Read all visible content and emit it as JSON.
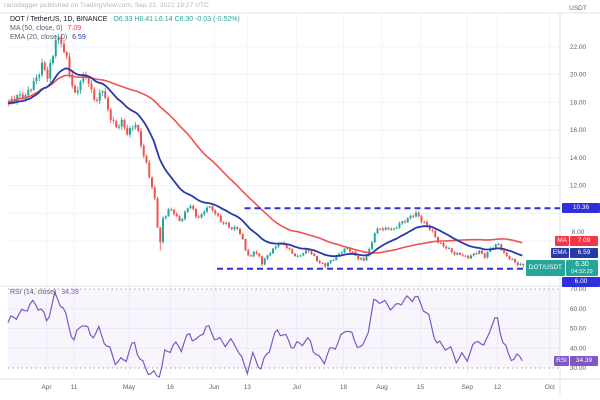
{
  "watermark": "ranodagger published on TradingView.com, Sep 21, 2022 19:27 UTC",
  "header": {
    "symbol_text": "DOT / TetherUS, 1D, BINANCE",
    "ohlc_text": "O6.33  H6.41  L6.14  C6.30  -0.03 (-0.52%)",
    "ma_label": "MA (50, close, 0)",
    "ma_value": "7.09",
    "ema_label": "EMA (20, close, 0)",
    "ema_value": "6.59"
  },
  "rsi_panel": {
    "legend_label": "RSI (14, close)",
    "legend_value": "34.39"
  },
  "badges": {
    "resistance": "10.36",
    "support": "6.00",
    "ma_label": "MA",
    "ma_value": "7.09",
    "ema_label": "EMA",
    "ema_value": "6.59",
    "symbol_label": "DOT/USDT",
    "symbol_value": "6.30",
    "symbol_countdown": "04:32:29",
    "rsi_label": "RSI",
    "rsi_value": "34.39"
  },
  "axes": {
    "unit": "USDT",
    "price_tick_labels": [
      "22.00",
      "20.00",
      "18.00",
      "16.00",
      "14.00",
      "12.00",
      "8.00"
    ],
    "rsi_tick_labels": [
      "70.00",
      "60.00",
      "50.00",
      "40.00",
      "30.00"
    ]
  },
  "colors": {
    "up": "#26a69a",
    "down": "#ef5350",
    "ema": "#2939a8",
    "sma": "#ef5350",
    "rsi": "#7e57c2",
    "level": "#2f2fe0",
    "grid": "#f0f3fa",
    "border": "#e0e3eb",
    "axis_text": "#5d606b",
    "band_fill": "rgba(126,87,194,0.05)",
    "band_line": "#a59fc4"
  },
  "chart_data": [
    {
      "type": "candlestick",
      "name": "DOT/USDT, 1D, BINANCE",
      "x_unit": "day index, day 0 = 2022-03-18, last day 187 = 2022-09-21",
      "ylim": [
        5.5,
        23.5
      ],
      "grid_prices": [
        22,
        20,
        18,
        16,
        14,
        12,
        10,
        8
      ],
      "price_ticks": [
        {
          "label": "22.00",
          "price": 22
        },
        {
          "label": "20.00",
          "price": 20
        },
        {
          "label": "18.00",
          "price": 18
        },
        {
          "label": "16.00",
          "price": 16
        },
        {
          "label": "14.00",
          "price": 14
        },
        {
          "label": "12.00",
          "price": 12
        },
        {
          "label": "8.00",
          "price": 8
        }
      ],
      "x_ticks": [
        {
          "label": "Apr",
          "day": 14
        },
        {
          "label": "11",
          "day": 24
        },
        {
          "label": "May",
          "day": 44
        },
        {
          "label": "16",
          "day": 59
        },
        {
          "label": "Jun",
          "day": 75
        },
        {
          "label": "13",
          "day": 87
        },
        {
          "label": "Jul",
          "day": 105
        },
        {
          "label": "18",
          "day": 122
        },
        {
          "label": "Aug",
          "day": 136
        },
        {
          "label": "15",
          "day": 150
        },
        {
          "label": "Sep",
          "day": 167
        },
        {
          "label": "12",
          "day": 178
        },
        {
          "label": "Oct",
          "day": 197
        }
      ],
      "levels": [
        {
          "name": "resistance",
          "price": 10.36,
          "label": "10.36",
          "day_start": 86,
          "day_end": 200.7
        },
        {
          "name": "support",
          "price": 6.0,
          "label": "6.00",
          "day_start": 76,
          "day_end": 195.6
        }
      ],
      "close_anchors": [
        [
          0,
          17.8
        ],
        [
          3,
          18.6
        ],
        [
          6,
          18.3
        ],
        [
          9,
          19.5
        ],
        [
          12,
          20.6
        ],
        [
          14,
          19.8
        ],
        [
          16,
          21.5
        ],
        [
          17,
          22.8
        ],
        [
          19,
          22.2
        ],
        [
          21,
          21.0
        ],
        [
          24,
          18.6
        ],
        [
          26,
          19.4
        ],
        [
          28,
          19.9
        ],
        [
          30,
          18.9
        ],
        [
          32,
          18.0
        ],
        [
          34,
          18.9
        ],
        [
          36,
          17.5
        ],
        [
          39,
          16.1
        ],
        [
          41,
          16.5
        ],
        [
          43,
          15.9
        ],
        [
          46,
          16.4
        ],
        [
          48,
          14.9
        ],
        [
          50,
          13.6
        ],
        [
          52,
          11.9
        ],
        [
          53,
          10.9
        ],
        [
          54,
          9.0
        ],
        [
          55,
          7.9
        ],
        [
          56,
          9.6
        ],
        [
          58,
          10.3
        ],
        [
          60,
          10.0
        ],
        [
          62,
          9.4
        ],
        [
          64,
          10.1
        ],
        [
          66,
          10.6
        ],
        [
          68,
          9.7
        ],
        [
          70,
          9.9
        ],
        [
          72,
          10.5
        ],
        [
          75,
          10.0
        ],
        [
          77,
          9.5
        ],
        [
          79,
          9.2
        ],
        [
          81,
          8.8
        ],
        [
          83,
          9.0
        ],
        [
          85,
          8.1
        ],
        [
          86,
          7.4
        ],
        [
          87,
          6.9
        ],
        [
          88,
          6.8
        ],
        [
          89,
          7.3
        ],
        [
          91,
          6.9
        ],
        [
          92,
          6.4
        ],
        [
          94,
          6.9
        ],
        [
          96,
          7.4
        ],
        [
          98,
          7.9
        ],
        [
          100,
          7.7
        ],
        [
          102,
          7.3
        ],
        [
          104,
          7.0
        ],
        [
          105,
          6.9
        ],
        [
          107,
          7.1
        ],
        [
          109,
          7.3
        ],
        [
          111,
          6.9
        ],
        [
          113,
          6.4
        ],
        [
          115,
          6.2
        ],
        [
          117,
          6.6
        ],
        [
          119,
          6.9
        ],
        [
          121,
          7.2
        ],
        [
          123,
          7.5
        ],
        [
          125,
          7.2
        ],
        [
          127,
          6.7
        ],
        [
          129,
          6.6
        ],
        [
          131,
          7.4
        ],
        [
          133,
          8.6
        ],
        [
          135,
          8.9
        ],
        [
          136,
          8.8
        ],
        [
          138,
          9.0
        ],
        [
          140,
          8.8
        ],
        [
          142,
          9.2
        ],
        [
          144,
          9.5
        ],
        [
          146,
          9.8
        ],
        [
          148,
          9.9
        ],
        [
          150,
          9.5
        ],
        [
          152,
          9.2
        ],
        [
          154,
          8.6
        ],
        [
          156,
          7.9
        ],
        [
          158,
          7.7
        ],
        [
          160,
          7.4
        ],
        [
          162,
          7.0
        ],
        [
          164,
          7.1
        ],
        [
          166,
          6.9
        ],
        [
          167,
          6.8
        ],
        [
          169,
          7.0
        ],
        [
          171,
          7.3
        ],
        [
          173,
          6.9
        ],
        [
          175,
          7.4
        ],
        [
          177,
          7.7
        ],
        [
          178,
          7.8
        ],
        [
          180,
          7.1
        ],
        [
          182,
          6.7
        ],
        [
          184,
          6.5
        ],
        [
          185,
          6.35
        ],
        [
          186,
          6.32
        ],
        [
          187,
          6.3
        ]
      ],
      "wick_low_overrides": {
        "55": 7.3,
        "92": 6.16,
        "115": 6.02,
        "187": 6.08
      },
      "wick_high_overrides": {
        "148": 10.2
      },
      "overlays": [
        {
          "name": "EMA (20, close)",
          "last_value": 6.59,
          "derive": "ema20"
        },
        {
          "name": "MA (50, close)",
          "last_value": 7.09,
          "derive": "sma50"
        }
      ]
    },
    {
      "type": "line",
      "name": "RSI (14, close)",
      "last_value": 34.39,
      "ylim": [
        24,
        72
      ],
      "band": [
        30,
        70
      ],
      "rsi_ticks": [
        {
          "label": "70.00",
          "value": 70
        },
        {
          "label": "60.00",
          "value": 60
        },
        {
          "label": "50.00",
          "value": 50
        },
        {
          "label": "40.00",
          "value": 40
        },
        {
          "label": "30.00",
          "value": 30
        }
      ],
      "anchors": [
        [
          0,
          52
        ],
        [
          4,
          58
        ],
        [
          8,
          62
        ],
        [
          12,
          60
        ],
        [
          14,
          55
        ],
        [
          17,
          66
        ],
        [
          20,
          60
        ],
        [
          24,
          45
        ],
        [
          27,
          52
        ],
        [
          30,
          47
        ],
        [
          33,
          50
        ],
        [
          36,
          40
        ],
        [
          39,
          34
        ],
        [
          43,
          35
        ],
        [
          46,
          42
        ],
        [
          48,
          35
        ],
        [
          52,
          27
        ],
        [
          55,
          24
        ],
        [
          57,
          38
        ],
        [
          60,
          42
        ],
        [
          63,
          39
        ],
        [
          66,
          48
        ],
        [
          69,
          44
        ],
        [
          72,
          50
        ],
        [
          75,
          47
        ],
        [
          79,
          42
        ],
        [
          83,
          42
        ],
        [
          85,
          35
        ],
        [
          87,
          29
        ],
        [
          89,
          35
        ],
        [
          92,
          30
        ],
        [
          94,
          38
        ],
        [
          98,
          48
        ],
        [
          102,
          45
        ],
        [
          104,
          41
        ],
        [
          107,
          42
        ],
        [
          110,
          44
        ],
        [
          113,
          35
        ],
        [
          115,
          33
        ],
        [
          118,
          40
        ],
        [
          121,
          46
        ],
        [
          123,
          50
        ],
        [
          126,
          43
        ],
        [
          129,
          41
        ],
        [
          131,
          50
        ],
        [
          133,
          62
        ],
        [
          135,
          64
        ],
        [
          138,
          63
        ],
        [
          141,
          60
        ],
        [
          144,
          64
        ],
        [
          146,
          66
        ],
        [
          148,
          67
        ],
        [
          150,
          62
        ],
        [
          153,
          55
        ],
        [
          156,
          44
        ],
        [
          158,
          41
        ],
        [
          161,
          38
        ],
        [
          163,
          35
        ],
        [
          165,
          37
        ],
        [
          167,
          35
        ],
        [
          169,
          39
        ],
        [
          171,
          45
        ],
        [
          173,
          41
        ],
        [
          175,
          50
        ],
        [
          178,
          54
        ],
        [
          180,
          43
        ],
        [
          182,
          38
        ],
        [
          184,
          35
        ],
        [
          186,
          34.8
        ],
        [
          187,
          34.39
        ]
      ]
    }
  ]
}
